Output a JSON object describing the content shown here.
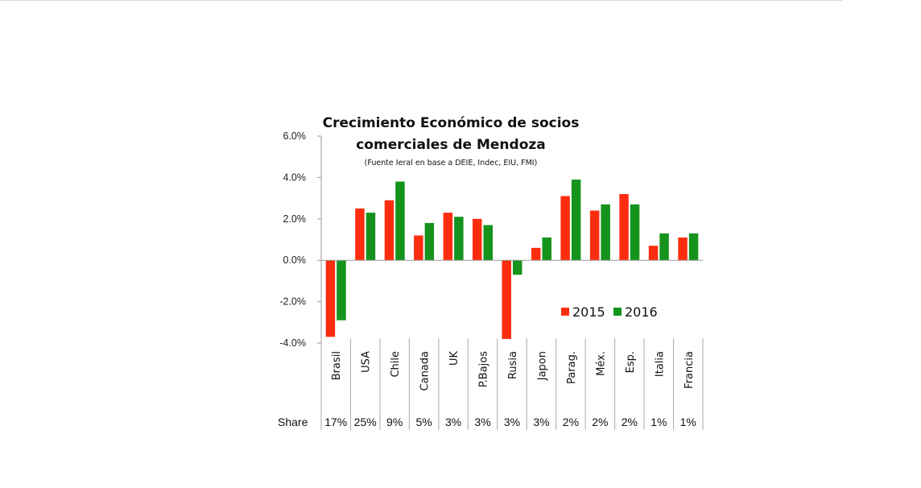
{
  "chart_data": {
    "type": "bar",
    "title": "Crecimiento Económico de socios comerciales de Mendoza",
    "title_lines": [
      "Crecimiento Económico de socios",
      "comerciales de Mendoza"
    ],
    "subtitle": "(Fuente Ieral en base a DEIE, Indec, EIU, FMI)",
    "categories": [
      "Brasil",
      "USA",
      "Chile",
      "Canada",
      "UK",
      "P.Bajos",
      "Rusia",
      "Japon",
      "Parag.",
      "Méx.",
      "Esp.",
      "Italia",
      "Francia"
    ],
    "series": [
      {
        "name": "2015",
        "color": "#ff2d0f",
        "values": [
          -3.7,
          2.5,
          2.9,
          1.2,
          2.3,
          2.0,
          -3.8,
          0.6,
          3.1,
          2.4,
          3.2,
          0.7,
          1.1
        ]
      },
      {
        "name": "2016",
        "color": "#16931d",
        "values": [
          -2.9,
          2.3,
          3.8,
          1.8,
          2.1,
          1.7,
          -0.7,
          1.1,
          3.9,
          2.7,
          2.7,
          1.3,
          1.3
        ]
      }
    ],
    "ylim": [
      -4.0,
      6.0
    ],
    "yticks": [
      "6.0%",
      "4.0%",
      "2.0%",
      "0.0%",
      "-2.0%",
      "-4.0%"
    ],
    "share_label": "Share",
    "shares": [
      "17%",
      "25%",
      "9%",
      "5%",
      "3%",
      "3%",
      "3%",
      "3%",
      "2%",
      "2%",
      "2%",
      "1%",
      "1%"
    ],
    "legend_position": "lower-right",
    "grid": false
  }
}
